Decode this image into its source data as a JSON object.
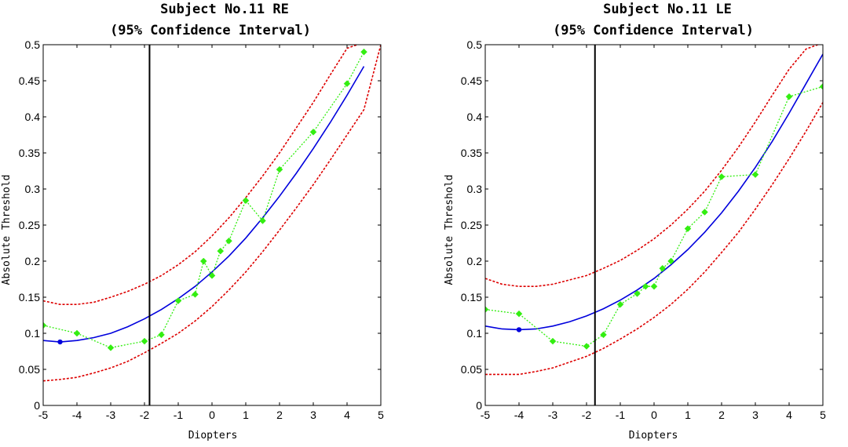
{
  "colors": {
    "fit": "#0000dd",
    "confidence": "#dd0000",
    "data": "#33ee11",
    "marker_line": "#000000",
    "minimum_point": "#0000dd"
  },
  "chart_data": [
    {
      "type": "line",
      "title": "Subject No.11 RE",
      "subtitle": "(95% Confidence Interval)",
      "xlabel": "Diopters",
      "ylabel": "Absolute Threshold",
      "xlim": [
        -5,
        5
      ],
      "ylim": [
        0,
        0.5
      ],
      "xticks": [
        -5,
        -4,
        -3,
        -2,
        -1,
        0,
        1,
        2,
        3,
        4,
        5
      ],
      "xtick_labels": [
        "-5",
        "-4",
        "-3",
        "-2",
        "-1",
        "0",
        "1",
        "2",
        "3",
        "4",
        "5"
      ],
      "yticks": [
        0,
        0.05,
        0.1,
        0.15,
        0.2,
        0.25,
        0.3,
        0.35,
        0.4,
        0.45,
        0.5
      ],
      "ytick_labels": [
        "0",
        "0.05",
        "0.1",
        "0.15",
        "0.2",
        "0.25",
        "0.3",
        "0.35",
        "0.4",
        "0.45",
        "0.5"
      ],
      "vertical_line_x": -1.85,
      "series": [
        {
          "style": "solid",
          "role": "fit",
          "x": [
            -5,
            -4.5,
            -4,
            -3.5,
            -3,
            -2.5,
            -2,
            -1.5,
            -1,
            -0.5,
            0,
            0.5,
            1,
            1.5,
            2,
            2.5,
            3,
            3.5,
            4,
            4.5
          ],
          "y": [
            0.09,
            0.088,
            0.09,
            0.094,
            0.1,
            0.109,
            0.12,
            0.133,
            0.148,
            0.165,
            0.185,
            0.207,
            0.232,
            0.26,
            0.29,
            0.322,
            0.356,
            0.392,
            0.43,
            0.47
          ]
        },
        {
          "style": "dashed",
          "role": "upper",
          "x": [
            -5,
            -4.5,
            -4,
            -3.5,
            -3,
            -2.5,
            -2,
            -1.5,
            -1,
            -0.5,
            0,
            0.5,
            1,
            1.5,
            2,
            2.5,
            3,
            3.5,
            4,
            4.3
          ],
          "y": [
            0.145,
            0.14,
            0.14,
            0.143,
            0.15,
            0.158,
            0.168,
            0.18,
            0.195,
            0.213,
            0.235,
            0.26,
            0.288,
            0.318,
            0.35,
            0.385,
            0.42,
            0.458,
            0.495,
            0.5
          ]
        },
        {
          "style": "dashed",
          "role": "lower",
          "x": [
            -5,
            -4.5,
            -4,
            -3.5,
            -3,
            -2.5,
            -2,
            -1.5,
            -1,
            -0.5,
            0,
            0.5,
            1,
            1.5,
            2,
            2.5,
            3,
            3.5,
            4,
            4.5,
            5
          ],
          "y": [
            0.034,
            0.036,
            0.039,
            0.045,
            0.052,
            0.061,
            0.073,
            0.086,
            0.1,
            0.117,
            0.137,
            0.16,
            0.185,
            0.213,
            0.243,
            0.274,
            0.306,
            0.34,
            0.375,
            0.41,
            0.5
          ]
        },
        {
          "style": "dotted-markers",
          "role": "data",
          "x": [
            -5,
            -4,
            -3,
            -2,
            -1.5,
            -1,
            -0.5,
            -0.25,
            0,
            0.25,
            0.5,
            1,
            1.5,
            2,
            3,
            4,
            4.5
          ],
          "y": [
            0.111,
            0.1,
            0.08,
            0.089,
            0.098,
            0.145,
            0.154,
            0.2,
            0.18,
            0.214,
            0.228,
            0.284,
            0.256,
            0.327,
            0.379,
            0.446,
            0.49
          ]
        }
      ],
      "minimum_point": {
        "x": -4.5,
        "y": 0.088
      }
    },
    {
      "type": "line",
      "title": "Subject No.11 LE",
      "subtitle": "(95% Confidence Interval)",
      "xlabel": "Diopters",
      "ylabel": "Absolute Threshold",
      "xlim": [
        -5,
        5
      ],
      "ylim": [
        0,
        0.5
      ],
      "xticks": [
        -5,
        -4,
        -3,
        -2,
        -1,
        0,
        1,
        2,
        3,
        4,
        5
      ],
      "xtick_labels": [
        "-5",
        "-4",
        "-3",
        "-2",
        "-1",
        "0",
        "1",
        "2",
        "3",
        "4",
        "5"
      ],
      "yticks": [
        0,
        0.05,
        0.1,
        0.15,
        0.2,
        0.25,
        0.3,
        0.35,
        0.4,
        0.45,
        0.5
      ],
      "ytick_labels": [
        "0",
        "0.05",
        "0.1",
        "0.15",
        "0.2",
        "0.25",
        "0.3",
        "0.35",
        "0.4",
        "0.45",
        "0.5"
      ],
      "vertical_line_x": -1.75,
      "series": [
        {
          "style": "solid",
          "role": "fit",
          "x": [
            -5,
            -4.5,
            -4,
            -3.5,
            -3,
            -2.5,
            -2,
            -1.5,
            -1,
            -0.5,
            0,
            0.5,
            1,
            1.5,
            2,
            2.5,
            3,
            3.5,
            4,
            4.5,
            5
          ],
          "y": [
            0.11,
            0.106,
            0.105,
            0.106,
            0.11,
            0.116,
            0.124,
            0.134,
            0.146,
            0.16,
            0.176,
            0.195,
            0.216,
            0.24,
            0.267,
            0.297,
            0.33,
            0.366,
            0.405,
            0.446,
            0.487
          ]
        },
        {
          "style": "dashed",
          "role": "upper",
          "x": [
            -5,
            -4.5,
            -4,
            -3.5,
            -3,
            -2.5,
            -2,
            -1.5,
            -1,
            -0.5,
            0,
            0.5,
            1,
            1.5,
            2,
            2.5,
            3,
            3.5,
            4,
            4.5,
            4.85
          ],
          "y": [
            0.176,
            0.168,
            0.165,
            0.165,
            0.168,
            0.174,
            0.18,
            0.19,
            0.201,
            0.215,
            0.231,
            0.25,
            0.272,
            0.297,
            0.326,
            0.358,
            0.393,
            0.43,
            0.466,
            0.494,
            0.5
          ]
        },
        {
          "style": "dashed",
          "role": "lower",
          "x": [
            -5,
            -4.5,
            -4,
            -3.5,
            -3,
            -2.5,
            -2,
            -1.5,
            -1,
            -0.5,
            0,
            0.5,
            1,
            1.5,
            2,
            2.5,
            3,
            3.5,
            4,
            4.5,
            5
          ],
          "y": [
            0.043,
            0.043,
            0.043,
            0.047,
            0.052,
            0.06,
            0.068,
            0.079,
            0.092,
            0.106,
            0.122,
            0.14,
            0.161,
            0.185,
            0.212,
            0.24,
            0.272,
            0.306,
            0.342,
            0.38,
            0.42
          ]
        },
        {
          "style": "dotted-markers",
          "role": "data",
          "x": [
            -5,
            -4,
            -3,
            -2,
            -1.5,
            -1,
            -0.5,
            -0.25,
            0,
            0.25,
            0.5,
            1,
            1.5,
            2,
            3,
            4,
            5
          ],
          "y": [
            0.133,
            0.127,
            0.089,
            0.082,
            0.098,
            0.14,
            0.155,
            0.165,
            0.165,
            0.19,
            0.2,
            0.245,
            0.268,
            0.317,
            0.32,
            0.428,
            0.442
          ]
        }
      ],
      "minimum_point": {
        "x": -4,
        "y": 0.105
      }
    }
  ]
}
